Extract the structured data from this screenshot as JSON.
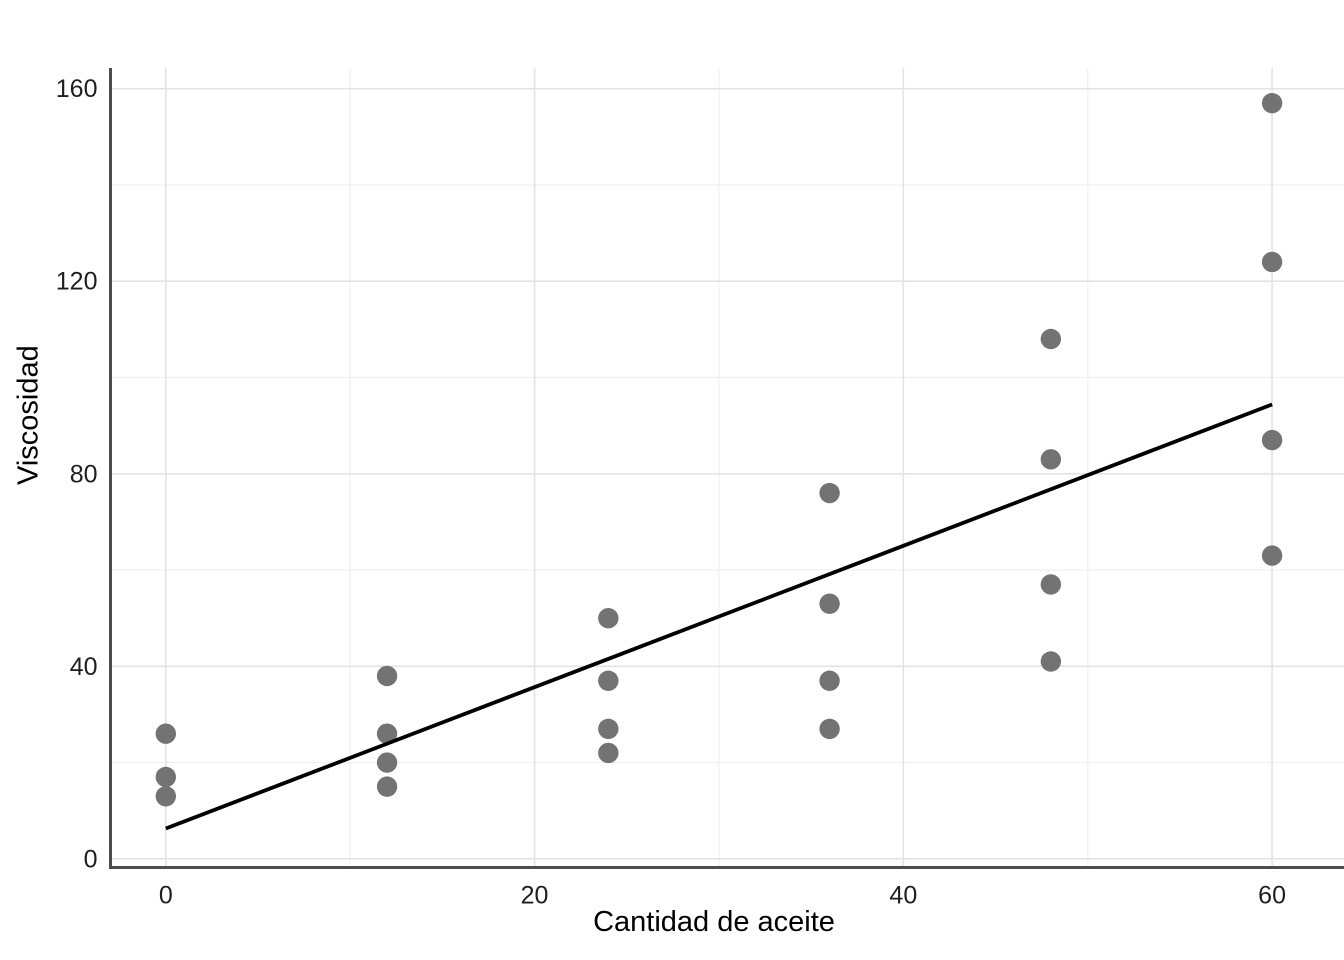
{
  "chart_data": {
    "type": "scatter",
    "title": "",
    "xlabel": "Cantidad de aceite",
    "ylabel": "Viscosidad",
    "xlim": [
      -3.0,
      63.9
    ],
    "ylim": [
      -1.8,
      164.3
    ],
    "x_ticks_major": [
      0,
      20,
      40,
      60
    ],
    "x_ticks_minor": [
      10,
      30,
      50
    ],
    "y_ticks_major": [
      0,
      40,
      80,
      120,
      160
    ],
    "y_ticks_minor": [
      20,
      60,
      100,
      140
    ],
    "grid": true,
    "legend": false,
    "points": [
      {
        "x": 0,
        "y": 26
      },
      {
        "x": 0,
        "y": 17
      },
      {
        "x": 0,
        "y": 13
      },
      {
        "x": 12,
        "y": 38
      },
      {
        "x": 12,
        "y": 26
      },
      {
        "x": 12,
        "y": 20
      },
      {
        "x": 12,
        "y": 15
      },
      {
        "x": 24,
        "y": 50
      },
      {
        "x": 24,
        "y": 37
      },
      {
        "x": 24,
        "y": 27
      },
      {
        "x": 24,
        "y": 22
      },
      {
        "x": 36,
        "y": 76
      },
      {
        "x": 36,
        "y": 53
      },
      {
        "x": 36,
        "y": 37
      },
      {
        "x": 36,
        "y": 27
      },
      {
        "x": 48,
        "y": 108
      },
      {
        "x": 48,
        "y": 83
      },
      {
        "x": 48,
        "y": 57
      },
      {
        "x": 48,
        "y": 41
      },
      {
        "x": 60,
        "y": 157
      },
      {
        "x": 60,
        "y": 124
      },
      {
        "x": 60,
        "y": 87
      },
      {
        "x": 60,
        "y": 63
      }
    ],
    "regression_line": {
      "x1": 0,
      "y1": 6.3,
      "x2": 60,
      "y2": 94.4
    },
    "colors": {
      "background": "#ffffff",
      "point": "#737373",
      "regression_line": "#000000",
      "grid_major": "#e3e3e3",
      "grid_minor": "#f0f0f0",
      "axis_line": "#4d4d4d",
      "tick_label": "#1f1f1f",
      "axis_title": "#000000"
    }
  }
}
